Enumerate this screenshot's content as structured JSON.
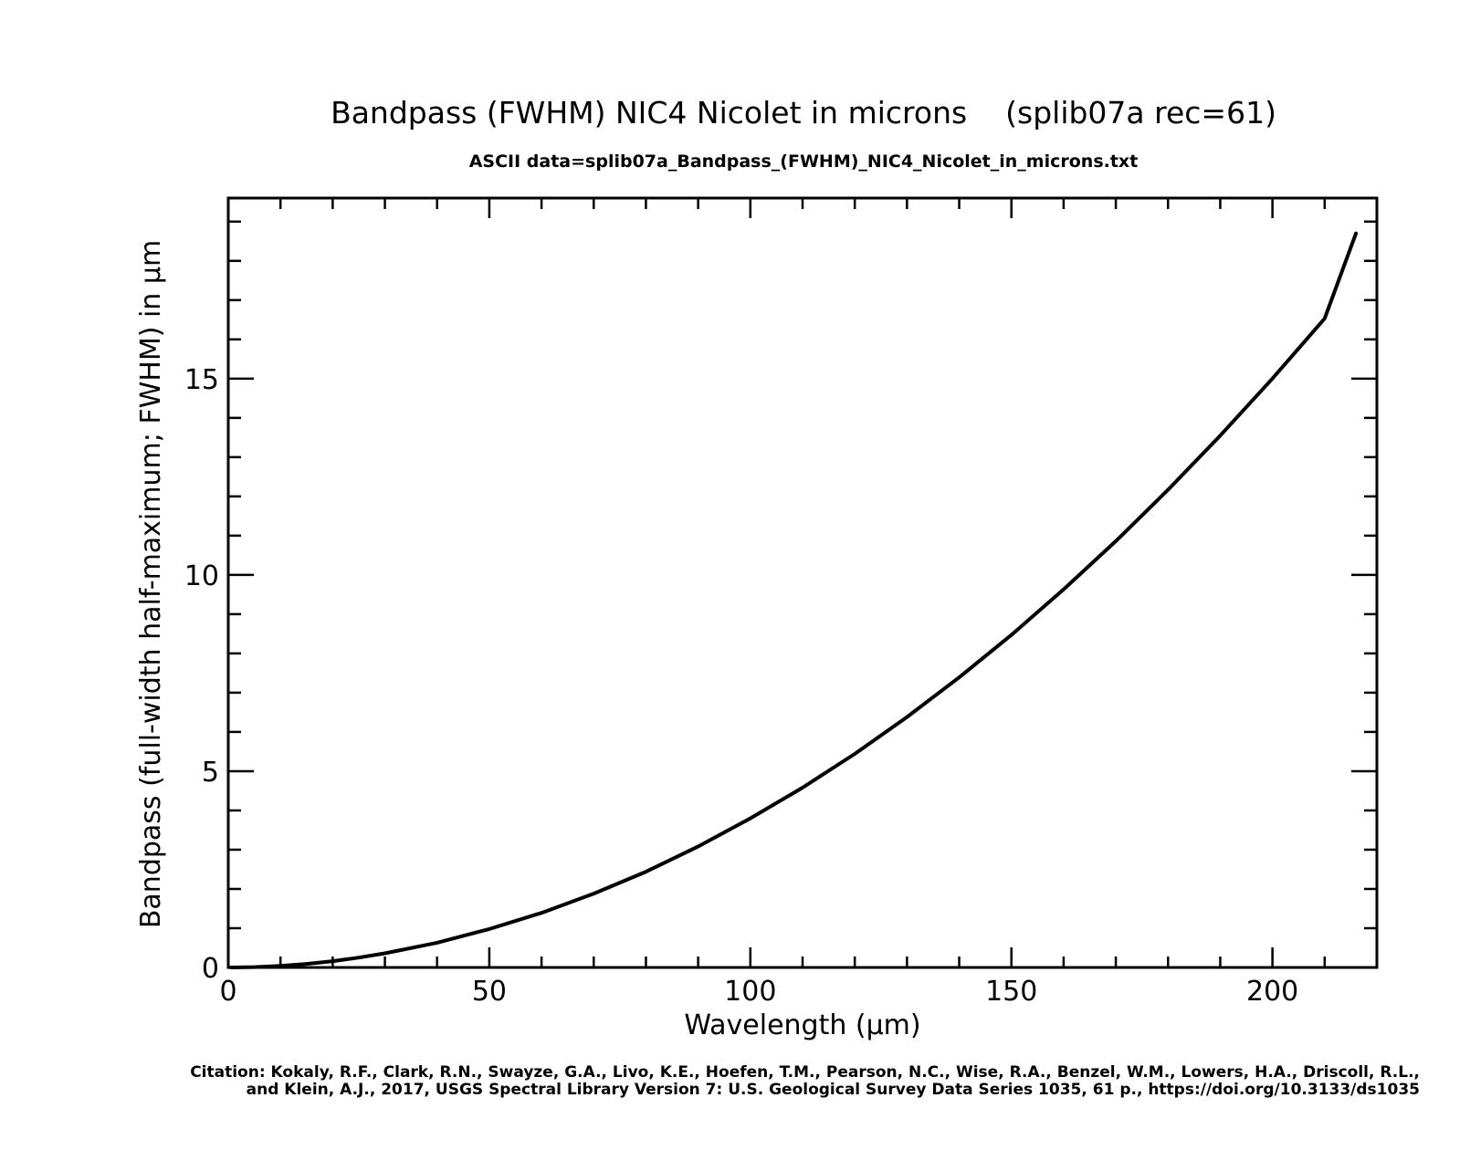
{
  "chart_data": {
    "type": "line",
    "title": "Bandpass (FWHM) NIC4 Nicolet in microns    (splib07a rec=61)",
    "subtitle": "ASCII data=splib07a_Bandpass_(FWHM)_NIC4_Nicolet_in_microns.txt",
    "xlabel": "Wavelength (μm)",
    "ylabel": "Bandpass (full-width half-maximum; FWHM) in μm",
    "xlim": [
      0,
      220
    ],
    "ylim": [
      0,
      19.6
    ],
    "x_ticks": [
      "0",
      "50",
      "100",
      "150",
      "200"
    ],
    "y_ticks": [
      "0",
      "5",
      "10",
      "15"
    ],
    "grid": false,
    "series": [
      {
        "x": [
          0.5,
          5,
          10,
          15,
          20,
          25,
          30,
          40,
          50,
          60,
          70,
          80,
          90,
          100,
          110,
          120,
          130,
          140,
          150,
          160,
          170,
          180,
          190,
          200,
          210,
          216
        ],
        "values": [
          0.0,
          0.01,
          0.04,
          0.09,
          0.16,
          0.25,
          0.36,
          0.63,
          0.98,
          1.39,
          1.88,
          2.44,
          3.08,
          3.8,
          4.58,
          5.44,
          6.38,
          7.39,
          8.47,
          9.63,
          10.86,
          12.17,
          13.55,
          15.0,
          16.53,
          18.7
        ]
      }
    ],
    "line_color": "#000000",
    "citation_lines": [
      "Citation: Kokaly, R.F., Clark, R.N., Swayze, G.A., Livo, K.E., Hoefen, T.M., Pearson, N.C., Wise, R.A., Benzel, W.M., Lowers, H.A., Driscoll, R.L.,",
      "and Klein, A.J., 2017, USGS Spectral Library Version 7: U.S. Geological Survey Data Series 1035, 61 p., https://doi.org/10.3133/ds1035"
    ]
  }
}
